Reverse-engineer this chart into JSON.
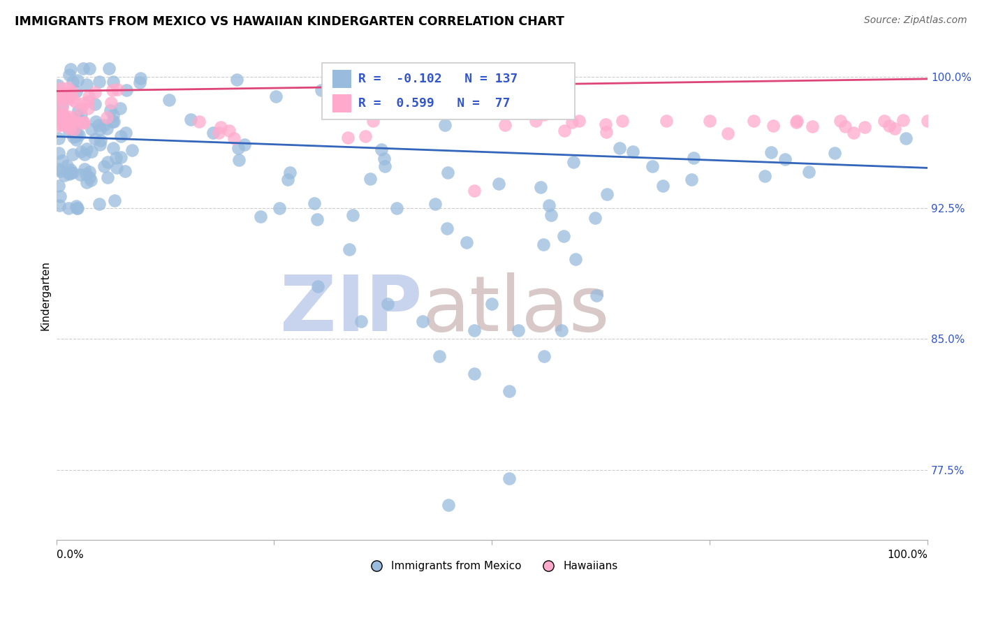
{
  "title": "IMMIGRANTS FROM MEXICO VS HAWAIIAN KINDERGARTEN CORRELATION CHART",
  "source_text": "Source: ZipAtlas.com",
  "ylabel": "Kindergarten",
  "ytick_labels": [
    "77.5%",
    "85.0%",
    "92.5%",
    "100.0%"
  ],
  "ytick_values": [
    0.775,
    0.85,
    0.925,
    1.0
  ],
  "xlim": [
    0.0,
    1.0
  ],
  "ylim": [
    0.735,
    1.015
  ],
  "blue_color": "#99BBDD",
  "pink_color": "#FFAACC",
  "blue_line_color": "#3366BB",
  "pink_line_color": "#DD4477",
  "R_blue": -0.102,
  "N_blue": 137,
  "R_pink": 0.599,
  "N_pink": 77,
  "legend_text_color": "#3355CC",
  "watermark_zip_color": "#C8D4EE",
  "watermark_atlas_color": "#D8C8C8",
  "blue_line_y0": 0.966,
  "blue_line_y1": 0.948,
  "pink_line_y0": 0.992,
  "pink_line_y1": 0.999
}
